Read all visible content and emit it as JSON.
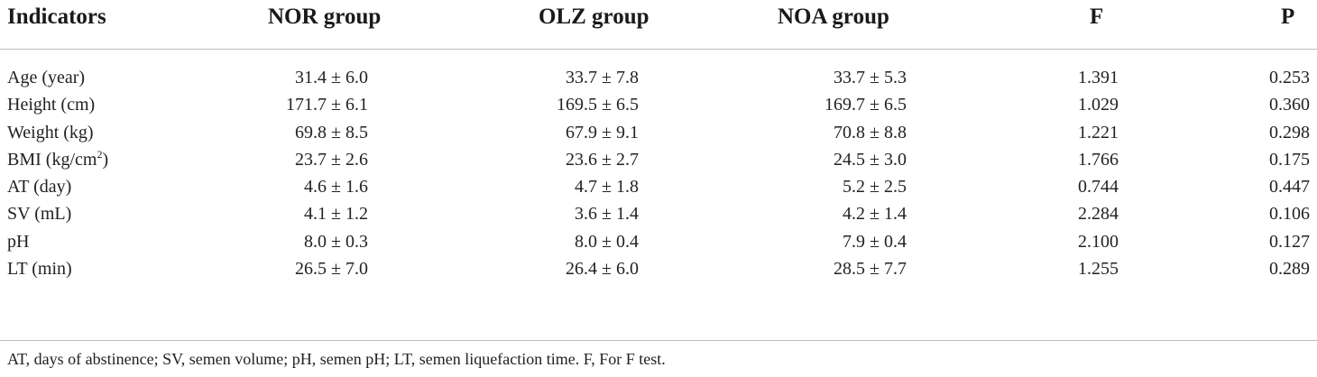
{
  "table": {
    "headers": {
      "indicators": "Indicators",
      "nor": "NOR group",
      "olz": "OLZ group",
      "noa": "NOA group",
      "f": "F",
      "p": "P"
    },
    "rows": [
      {
        "indicator": "Age (year)",
        "nor": "31.4 ± 6.0",
        "olz": "33.7 ± 7.8",
        "noa": "33.7 ± 5.3",
        "f": "1.391",
        "p": "0.253"
      },
      {
        "indicator": "Height (cm)",
        "nor": "171.7 ± 6.1",
        "olz": "169.5 ± 6.5",
        "noa": "169.7 ± 6.5",
        "f": "1.029",
        "p": "0.360"
      },
      {
        "indicator": "Weight (kg)",
        "nor": "69.8 ± 8.5",
        "olz": "67.9 ± 9.1",
        "noa": "70.8 ± 8.8",
        "f": "1.221",
        "p": "0.298"
      },
      {
        "indicator": "BMI (kg/cm",
        "indicator_sup": "2",
        "indicator_tail": ")",
        "nor": "23.7 ± 2.6",
        "olz": "23.6 ± 2.7",
        "noa": "24.5 ± 3.0",
        "f": "1.766",
        "p": "0.175"
      },
      {
        "indicator": "AT (day)",
        "nor": "4.6 ± 1.6",
        "olz": "4.7 ± 1.8",
        "noa": "5.2 ± 2.5",
        "f": "0.744",
        "p": "0.447"
      },
      {
        "indicator": "SV (mL)",
        "nor": "4.1 ± 1.2",
        "olz": "3.6 ± 1.4",
        "noa": "4.2 ± 1.4",
        "f": "2.284",
        "p": "0.106"
      },
      {
        "indicator": "pH",
        "nor": "8.0 ± 0.3",
        "olz": "8.0 ± 0.4",
        "noa": "7.9 ± 0.4",
        "f": "2.100",
        "p": "0.127"
      },
      {
        "indicator": "LT (min)",
        "nor": "26.5 ± 7.0",
        "olz": "26.4 ± 6.0",
        "noa": "28.5 ± 7.7",
        "f": "1.255",
        "p": "0.289"
      }
    ],
    "footnote": "AT, days of abstinence; SV, semen volume; pH, semen pH; LT, semen liquefaction time. F, For F test."
  }
}
